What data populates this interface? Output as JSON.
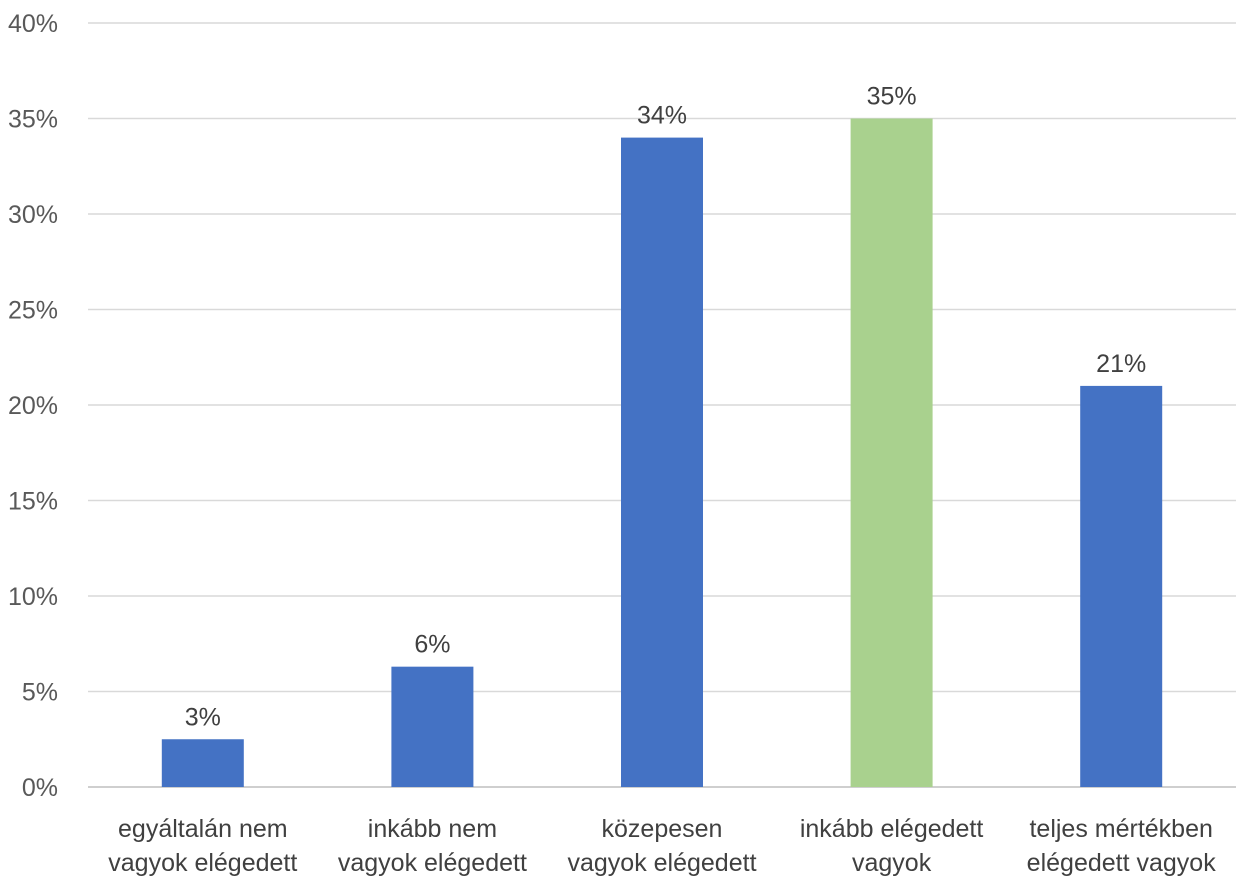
{
  "chart_data": {
    "type": "bar",
    "title": "",
    "xlabel": "",
    "ylabel": "",
    "ylim": [
      0,
      0.4
    ],
    "y_ticks": [
      "0%",
      "5%",
      "10%",
      "15%",
      "20%",
      "25%",
      "30%",
      "35%",
      "40%"
    ],
    "grid": true,
    "legend": "none",
    "categories": [
      [
        "egyáltalán nem",
        "vagyok elégedett"
      ],
      [
        "inkább nem",
        "vagyok elégedett"
      ],
      [
        "közepesen",
        "vagyok elégedett"
      ],
      [
        "inkább elégedett",
        "vagyok"
      ],
      [
        "teljes mértékben",
        "elégedett vagyok"
      ]
    ],
    "values": [
      0.025,
      0.063,
      0.34,
      0.35,
      0.21
    ],
    "data_labels": [
      "3%",
      "6%",
      "34%",
      "35%",
      "21%"
    ],
    "colors": [
      "#4472C4",
      "#4472C4",
      "#4472C4",
      "#A9D18E",
      "#4472C4"
    ]
  }
}
